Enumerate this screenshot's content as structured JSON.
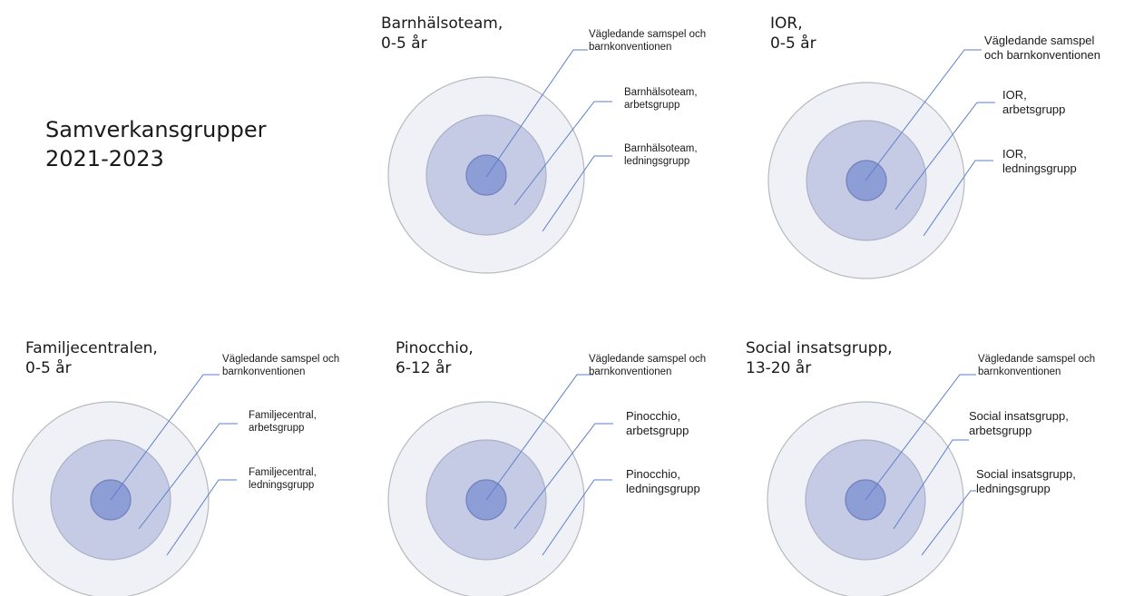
{
  "title": {
    "line1": "Samverkansgrupper",
    "line2": "2021-2023"
  },
  "groups": [
    {
      "title1": "Barnhälsoteam,",
      "title2": "0-5 år",
      "inner1": "Vägledande samspel och",
      "inner2": "barnkonventionen",
      "middle1": "Barnhälsoteam,",
      "middle2": "arbetsgrupp",
      "outer1": "Barnhälsoteam,",
      "outer2": "ledningsgrupp"
    },
    {
      "title1": "IOR,",
      "title2": "0-5 år",
      "inner1": "Vägledande samspel",
      "inner2": "och barnkonventionen",
      "middle1": "IOR,",
      "middle2": "arbetsgrupp",
      "outer1": "IOR,",
      "outer2": "ledningsgrupp"
    },
    {
      "title1": "Familjecentralen,",
      "title2": "0-5 år",
      "inner1": "Vägledande samspel och",
      "inner2": "barnkonventionen",
      "middle1": "Familjecentral,",
      "middle2": "arbetsgrupp",
      "outer1": "Familjecentral,",
      "outer2": "ledningsgrupp"
    },
    {
      "title1": "Pinocchio,",
      "title2": "6-12 år",
      "inner1": "Vägledande samspel och",
      "inner2": "barnkonventionen",
      "middle1": "Pinocchio,",
      "middle2": "arbetsgrupp",
      "outer1": "Pinocchio,",
      "outer2": "ledningsgrupp"
    },
    {
      "title1": "Social insatsgrupp,",
      "title2": "13-20 år",
      "inner1": "Vägledande samspel och",
      "inner2": "barnkonventionen",
      "middle1": "Social insatsgrupp,",
      "middle2": "arbetsgrupp",
      "outer1": "Social insatsgrupp,",
      "outer2": "ledningsgrupp"
    }
  ],
  "colors": {
    "outer_fill": "#f0f1f6",
    "outer_stroke": "#b6b9c0",
    "middle_fill": "#c5cbe4",
    "middle_stroke": "#aab1c7",
    "inner_fill": "#8d9dd6",
    "inner_stroke": "#7282bd",
    "leader_line": "#5b7fc9"
  }
}
